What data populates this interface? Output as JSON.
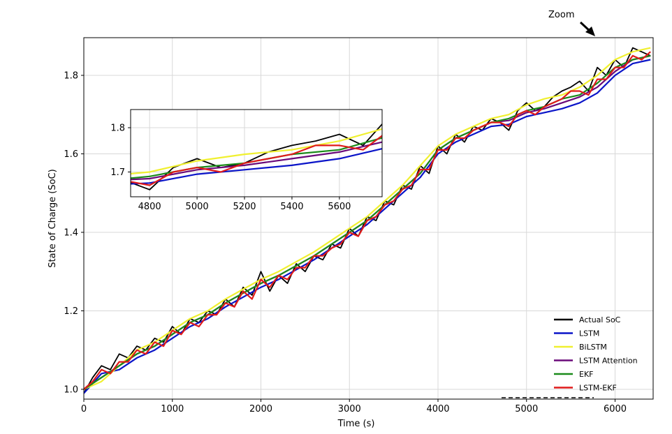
{
  "chart_data": {
    "type": "line",
    "title": "",
    "xlabel": "Time (s)",
    "ylabel": "State of Charge (SoC)",
    "xlim": [
      0,
      6430
    ],
    "ylim": [
      0.975,
      1.896
    ],
    "xticks": [
      0,
      1000,
      2000,
      3000,
      4000,
      5000,
      6000
    ],
    "yticks": [
      1.0,
      1.2,
      1.4,
      1.6,
      1.8
    ],
    "xtick_labels": [
      "0",
      "1000",
      "2000",
      "3000",
      "4000",
      "5000",
      "6000"
    ],
    "ytick_labels": [
      "1.0",
      "1.2",
      "1.4",
      "1.6",
      "1.8"
    ],
    "grid": true,
    "legend_placement": "bottom-right",
    "annotation": "Zoom",
    "inset": {
      "xlim": [
        4720,
        5780
      ],
      "ylim": [
        1.644,
        1.841
      ],
      "xticks": [
        4800,
        5000,
        5200,
        5400,
        5600
      ],
      "yticks": [
        1.7,
        1.8
      ],
      "xtick_labels": [
        "4800",
        "5000",
        "5200",
        "5400",
        "5600"
      ],
      "ytick_labels": [
        "1.7",
        "1.8"
      ]
    },
    "series": [
      {
        "name": "Actual SoC",
        "color": "#000000",
        "x_step": 100,
        "values": [
          0.99,
          1.03,
          1.06,
          1.05,
          1.09,
          1.08,
          1.11,
          1.1,
          1.13,
          1.12,
          1.16,
          1.14,
          1.18,
          1.17,
          1.2,
          1.19,
          1.23,
          1.21,
          1.26,
          1.24,
          1.3,
          1.25,
          1.29,
          1.27,
          1.32,
          1.3,
          1.34,
          1.33,
          1.37,
          1.36,
          1.41,
          1.39,
          1.44,
          1.43,
          1.48,
          1.47,
          1.52,
          1.51,
          1.57,
          1.55,
          1.62,
          1.6,
          1.65,
          1.63,
          1.67,
          1.66,
          1.69,
          1.68,
          1.66,
          1.71,
          1.73,
          1.71,
          1.72,
          1.745,
          1.76,
          1.77,
          1.785,
          1.76,
          1.82,
          1.8,
          1.84,
          1.82,
          1.87,
          1.86,
          1.85
        ]
      },
      {
        "name": "LSTM",
        "color": "#0a14c8",
        "x_step": 200,
        "values": [
          0.99,
          1.04,
          1.05,
          1.08,
          1.1,
          1.13,
          1.16,
          1.18,
          1.21,
          1.235,
          1.26,
          1.28,
          1.305,
          1.33,
          1.36,
          1.39,
          1.42,
          1.46,
          1.5,
          1.54,
          1.6,
          1.63,
          1.65,
          1.67,
          1.675,
          1.695,
          1.705,
          1.715,
          1.73,
          1.755,
          1.8,
          1.83,
          1.84
        ]
      },
      {
        "name": "BiLSTM",
        "color": "#f0f030",
        "x_step": 200,
        "values": [
          1.0,
          1.02,
          1.06,
          1.1,
          1.12,
          1.15,
          1.18,
          1.2,
          1.23,
          1.255,
          1.28,
          1.3,
          1.325,
          1.35,
          1.38,
          1.41,
          1.44,
          1.48,
          1.52,
          1.57,
          1.62,
          1.65,
          1.67,
          1.69,
          1.7,
          1.725,
          1.74,
          1.75,
          1.77,
          1.8,
          1.84,
          1.86,
          1.87
        ]
      },
      {
        "name": "LSTM Attention",
        "color": "#6a0a7a",
        "x_step": 200,
        "values": [
          1.0,
          1.03,
          1.06,
          1.09,
          1.11,
          1.14,
          1.17,
          1.19,
          1.22,
          1.245,
          1.27,
          1.29,
          1.315,
          1.34,
          1.37,
          1.4,
          1.43,
          1.47,
          1.51,
          1.55,
          1.61,
          1.64,
          1.66,
          1.68,
          1.685,
          1.705,
          1.715,
          1.73,
          1.745,
          1.77,
          1.81,
          1.84,
          1.85
        ]
      },
      {
        "name": "EKF",
        "color": "#1a8a1a",
        "x_step": 200,
        "values": [
          1.0,
          1.03,
          1.06,
          1.09,
          1.11,
          1.14,
          1.17,
          1.19,
          1.22,
          1.245,
          1.27,
          1.29,
          1.315,
          1.34,
          1.37,
          1.4,
          1.43,
          1.47,
          1.51,
          1.55,
          1.61,
          1.64,
          1.66,
          1.68,
          1.69,
          1.71,
          1.72,
          1.74,
          1.75,
          1.78,
          1.82,
          1.84,
          1.85
        ]
      },
      {
        "name": "LSTM-EKF",
        "color": "#e01a1a",
        "x_step": 100,
        "values": [
          1.0,
          1.02,
          1.05,
          1.04,
          1.07,
          1.07,
          1.1,
          1.09,
          1.12,
          1.11,
          1.15,
          1.14,
          1.17,
          1.16,
          1.19,
          1.19,
          1.22,
          1.21,
          1.25,
          1.23,
          1.28,
          1.26,
          1.29,
          1.28,
          1.31,
          1.31,
          1.34,
          1.34,
          1.36,
          1.37,
          1.4,
          1.39,
          1.43,
          1.44,
          1.47,
          1.48,
          1.51,
          1.52,
          1.56,
          1.56,
          1.61,
          1.61,
          1.64,
          1.64,
          1.66,
          1.67,
          1.68,
          1.68,
          1.67,
          1.7,
          1.71,
          1.7,
          1.72,
          1.73,
          1.74,
          1.76,
          1.76,
          1.75,
          1.79,
          1.79,
          1.82,
          1.82,
          1.85,
          1.84,
          1.86
        ]
      }
    ]
  }
}
